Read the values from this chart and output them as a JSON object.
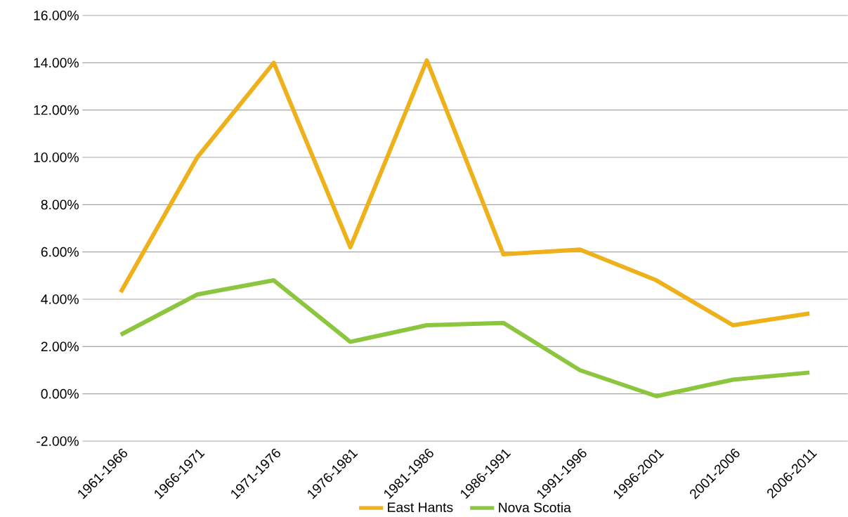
{
  "chart_data": {
    "type": "line",
    "categories": [
      "1961-1966",
      "1966-1971",
      "1971-1976",
      "1976-1981",
      "1981-1986",
      "1986-1991",
      "1991-1996",
      "1996-2001",
      "2001-2006",
      "2006-2011"
    ],
    "series": [
      {
        "name": "East Hants",
        "color": "#eeb11b",
        "values": [
          4.3,
          10.0,
          14.0,
          6.2,
          14.1,
          5.9,
          6.1,
          4.8,
          2.9,
          3.4
        ]
      },
      {
        "name": "Nova Scotia",
        "color": "#8cc63f",
        "values": [
          2.5,
          4.2,
          4.8,
          2.2,
          2.9,
          3.0,
          1.0,
          -0.1,
          0.6,
          0.9
        ]
      }
    ],
    "ylim": [
      -2,
      16
    ],
    "yticks": [
      {
        "value": -2,
        "label": "-2.00%"
      },
      {
        "value": 0,
        "label": "0.00%"
      },
      {
        "value": 2,
        "label": "2.00%"
      },
      {
        "value": 4,
        "label": "4.00%"
      },
      {
        "value": 6,
        "label": "6.00%"
      },
      {
        "value": 8,
        "label": "8.00%"
      },
      {
        "value": 10,
        "label": "10.00%"
      },
      {
        "value": 12,
        "label": "12.00%"
      },
      {
        "value": 14,
        "label": "14.00%"
      },
      {
        "value": 16,
        "label": "16.00%"
      }
    ],
    "grid": "y",
    "legend": "bottom",
    "marker": "none",
    "line_style": "solid"
  }
}
